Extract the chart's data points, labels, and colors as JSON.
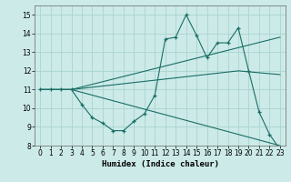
{
  "title": "",
  "xlabel": "Humidex (Indice chaleur)",
  "xlim": [
    -0.5,
    23.5
  ],
  "ylim": [
    8,
    15.5
  ],
  "yticks": [
    8,
    9,
    10,
    11,
    12,
    13,
    14,
    15
  ],
  "xticks": [
    0,
    1,
    2,
    3,
    4,
    5,
    6,
    7,
    8,
    9,
    10,
    11,
    12,
    13,
    14,
    15,
    16,
    17,
    18,
    19,
    20,
    21,
    22,
    23
  ],
  "bg_color": "#cceae8",
  "grid_color": "#aad4d0",
  "line_color": "#1a6e66",
  "line1_x": [
    0,
    1,
    2,
    3,
    4,
    5,
    6,
    7,
    8,
    9,
    10,
    11,
    12,
    13,
    14,
    15,
    16,
    17,
    18,
    19,
    20,
    21,
    22,
    23
  ],
  "line1_y": [
    11,
    11,
    11,
    11,
    10.2,
    9.5,
    9.2,
    8.8,
    8.8,
    9.3,
    9.7,
    10.7,
    13.7,
    13.8,
    15.0,
    13.9,
    12.7,
    13.5,
    13.5,
    14.3,
    12.0,
    9.8,
    8.6,
    7.8
  ],
  "line2_x": [
    0,
    3,
    23
  ],
  "line2_y": [
    11,
    11,
    8.0
  ],
  "line3_x": [
    0,
    3,
    23
  ],
  "line3_y": [
    11,
    11,
    13.8
  ],
  "line4_x": [
    0,
    3,
    19,
    23
  ],
  "line4_y": [
    11,
    11,
    12.0,
    11.8
  ]
}
